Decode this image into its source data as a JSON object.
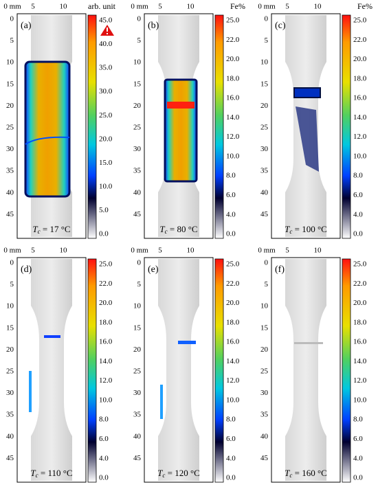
{
  "panels": [
    {
      "label": "(a)",
      "x_ticks": [
        "0 mm",
        "5",
        "10"
      ],
      "y_ticks": [
        "0",
        "5",
        "10",
        "15",
        "20",
        "25",
        "30",
        "35",
        "40",
        "45"
      ],
      "colorbar_unit": "arb. unit",
      "colorbar_ticks": [
        "45.0",
        "40.0",
        "35.0",
        "30.0",
        "25.0",
        "20.0",
        "15.0",
        "10.0",
        "5.0",
        "0.0"
      ],
      "caption": {
        "symbol": "T",
        "subscript": "c",
        "text": " = 17 °C"
      }
    },
    {
      "label": "(b)",
      "x_ticks": [
        "0 mm",
        "5",
        "10"
      ],
      "y_ticks": [
        "0",
        "5",
        "10",
        "15",
        "20",
        "25",
        "30",
        "35",
        "40",
        "45"
      ],
      "colorbar_unit": "Fe%",
      "colorbar_ticks": [
        "25.0",
        "22.0",
        "20.0",
        "18.0",
        "16.0",
        "14.0",
        "12.0",
        "10.0",
        "8.0",
        "6.0",
        "4.0",
        "0.0"
      ],
      "caption": {
        "symbol": "T",
        "subscript": "c",
        "text": " = 80 °C"
      }
    },
    {
      "label": "(c)",
      "x_ticks": [
        "0 mm",
        "5",
        "10"
      ],
      "y_ticks": [
        "0",
        "5",
        "10",
        "15",
        "20",
        "25",
        "30",
        "35",
        "40",
        "45"
      ],
      "colorbar_unit": "Fe%",
      "colorbar_ticks": [
        "25.0",
        "22.0",
        "20.0",
        "18.0",
        "16.0",
        "14.0",
        "12.0",
        "10.0",
        "8.0",
        "6.0",
        "4.0",
        "0.0"
      ],
      "caption": {
        "symbol": "T",
        "subscript": "c",
        "text": " = 100 °C"
      }
    },
    {
      "label": "(d)",
      "x_ticks": [
        "0 mm",
        "5",
        "10"
      ],
      "y_ticks": [
        "0",
        "5",
        "10",
        "15",
        "20",
        "25",
        "30",
        "35",
        "40",
        "45"
      ],
      "colorbar_ticks": [
        "25.0",
        "22.0",
        "20.0",
        "18.0",
        "16.0",
        "14.0",
        "12.0",
        "10.0",
        "8.0",
        "6.0",
        "4.0",
        "0.0"
      ],
      "caption": {
        "symbol": "T",
        "subscript": "c",
        "text": " = 110 °C"
      }
    },
    {
      "label": "(e)",
      "x_ticks": [
        "0 mm",
        "5",
        "10"
      ],
      "y_ticks": [
        "0",
        "5",
        "10",
        "15",
        "20",
        "25",
        "30",
        "35",
        "40",
        "45"
      ],
      "colorbar_ticks": [
        "25.0",
        "22.0",
        "20.0",
        "18.0",
        "16.0",
        "14.0",
        "12.0",
        "10.0",
        "8.0",
        "6.0",
        "4.0",
        "0.0"
      ],
      "caption": {
        "symbol": "T",
        "subscript": "c",
        "text": " = 120 °C"
      }
    },
    {
      "label": "(f)",
      "x_ticks": [
        "0 mm",
        "5",
        "10"
      ],
      "y_ticks": [
        "0",
        "5",
        "10",
        "15",
        "20",
        "25",
        "30",
        "35",
        "40",
        "45"
      ],
      "colorbar_ticks": [
        "25.0",
        "22.0",
        "20.0",
        "18.0",
        "16.0",
        "14.0",
        "12.0",
        "10.0",
        "8.0",
        "6.0",
        "4.0",
        "0.0"
      ],
      "caption": {
        "symbol": "T",
        "subscript": "c",
        "text": " = 160 °C"
      }
    }
  ]
}
